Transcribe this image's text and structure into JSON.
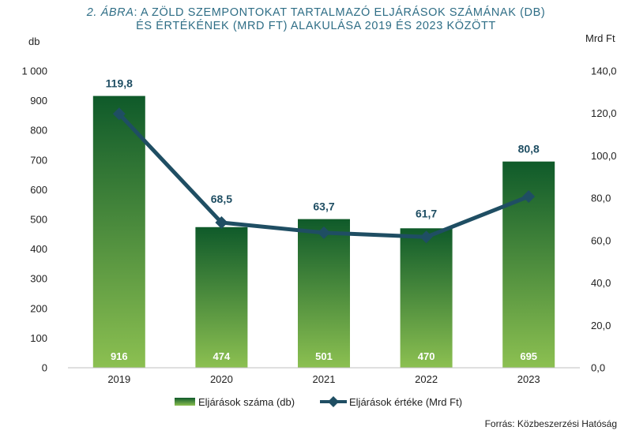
{
  "chart_data": {
    "type": "bar",
    "title_prefix": "2. ÁBRA",
    "title_line1_rest": ": A ZÖLD SZEMPONTOKAT TARTALMAZÓ ELJÁRÁSOK SZÁMÁNAK (DB)",
    "title_line2": "ÉS ÉRTÉKÉNEK (MRD FT) ALAKULÁSA 2019 ÉS 2023 KÖZÖTT",
    "ylabel_left": "db",
    "ylabel_right": "Mrd Ft",
    "categories": [
      "2019",
      "2020",
      "2021",
      "2022",
      "2023"
    ],
    "left_ticks": [
      "0",
      "100",
      "200",
      "300",
      "400",
      "500",
      "600",
      "700",
      "800",
      "900",
      "1 000"
    ],
    "right_ticks": [
      "0,0",
      "20,0",
      "40,0",
      "60,0",
      "80,0",
      "100,0",
      "120,0",
      "140,0"
    ],
    "ylim_left": [
      0,
      1000
    ],
    "ylim_right": [
      0,
      140
    ],
    "series": [
      {
        "name": "Eljárások száma (db)",
        "kind": "bar",
        "axis": "left",
        "values": [
          916,
          474,
          501,
          470,
          695
        ],
        "labels": [
          "916",
          "474",
          "501",
          "470",
          "695"
        ],
        "color_top": "#0f5a2a",
        "color_bottom": "#8cc051"
      },
      {
        "name": "Eljárások értéke (Mrd Ft)",
        "kind": "line",
        "axis": "right",
        "values": [
          119.8,
          68.5,
          63.7,
          61.7,
          80.8
        ],
        "labels": [
          "119,8",
          "68,5",
          "63,7",
          "61,7",
          "80,8"
        ],
        "color": "#1f4e63"
      }
    ],
    "grid": false,
    "legend_position": "bottom"
  },
  "source_note": "Forrás: Közbeszerzési Hatóság"
}
